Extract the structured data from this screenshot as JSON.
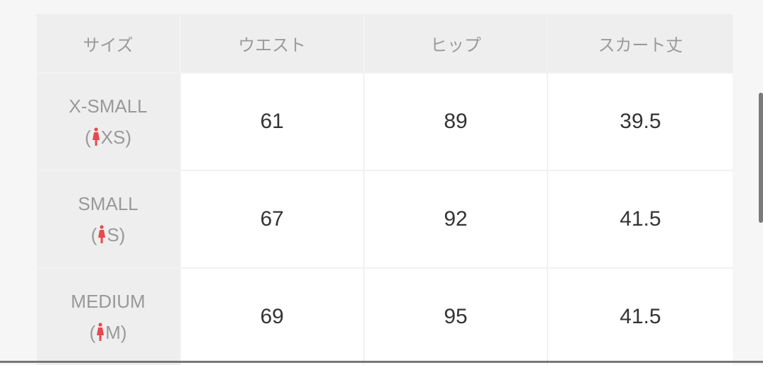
{
  "headers": [
    "サイズ",
    "ウエスト",
    "ヒップ",
    "スカート丈"
  ],
  "rows": [
    {
      "size": "X-SMALL",
      "code": "XS",
      "waist": "61",
      "hip": "89",
      "length": "39.5"
    },
    {
      "size": "SMALL",
      "code": "S",
      "waist": "67",
      "hip": "92",
      "length": "41.5"
    },
    {
      "size": "MEDIUM",
      "code": "M",
      "waist": "69",
      "hip": "95",
      "length": "41.5"
    }
  ],
  "icon": "woman-figure-icon",
  "icon_color": "#e8484f"
}
